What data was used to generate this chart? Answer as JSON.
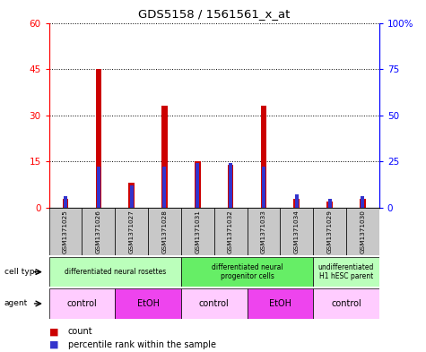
{
  "title": "GDS5158 / 1561561_x_at",
  "samples": [
    "GSM1371025",
    "GSM1371026",
    "GSM1371027",
    "GSM1371028",
    "GSM1371031",
    "GSM1371032",
    "GSM1371033",
    "GSM1371034",
    "GSM1371029",
    "GSM1371030"
  ],
  "count_values": [
    3,
    45,
    8,
    33,
    15,
    14,
    33,
    3,
    2,
    3
  ],
  "percentile_values": [
    6,
    22,
    12,
    22,
    24,
    24,
    22,
    7,
    5,
    6
  ],
  "ylim_left": [
    0,
    60
  ],
  "ylim_right": [
    0,
    100
  ],
  "yticks_left": [
    0,
    15,
    30,
    45,
    60
  ],
  "ytick_labels_left": [
    "0",
    "15",
    "30",
    "45",
    "60"
  ],
  "yticks_right": [
    0,
    25,
    50,
    75,
    100
  ],
  "ytick_labels_right": [
    "0",
    "25",
    "50",
    "75",
    "100%"
  ],
  "bar_color_red": "#cc0000",
  "bar_color_blue": "#3333cc",
  "red_bar_width": 0.18,
  "blue_bar_width": 0.18,
  "sample_bg_color": "#c8c8c8",
  "cell_type_label": "cell type",
  "agent_label": "agent",
  "legend_count": "count",
  "legend_percentile": "percentile rank within the sample",
  "cell_groups": [
    {
      "label": "differentiated neural rosettes",
      "cols": [
        0,
        1,
        2,
        3
      ],
      "color": "#bbffbb"
    },
    {
      "label": "differentiated neural\nprogenitor cells",
      "cols": [
        4,
        5,
        6,
        7
      ],
      "color": "#66ee66"
    },
    {
      "label": "undifferentiated\nH1 hESC parent",
      "cols": [
        8,
        9
      ],
      "color": "#bbffbb"
    }
  ],
  "agent_groups": [
    {
      "label": "control",
      "cols": [
        0,
        1
      ],
      "color": "#ffccff"
    },
    {
      "label": "EtOH",
      "cols": [
        2,
        3
      ],
      "color": "#ee44ee"
    },
    {
      "label": "control",
      "cols": [
        4,
        5
      ],
      "color": "#ffccff"
    },
    {
      "label": "EtOH",
      "cols": [
        6,
        7
      ],
      "color": "#ee44ee"
    },
    {
      "label": "control",
      "cols": [
        8,
        9
      ],
      "color": "#ffccff"
    }
  ]
}
